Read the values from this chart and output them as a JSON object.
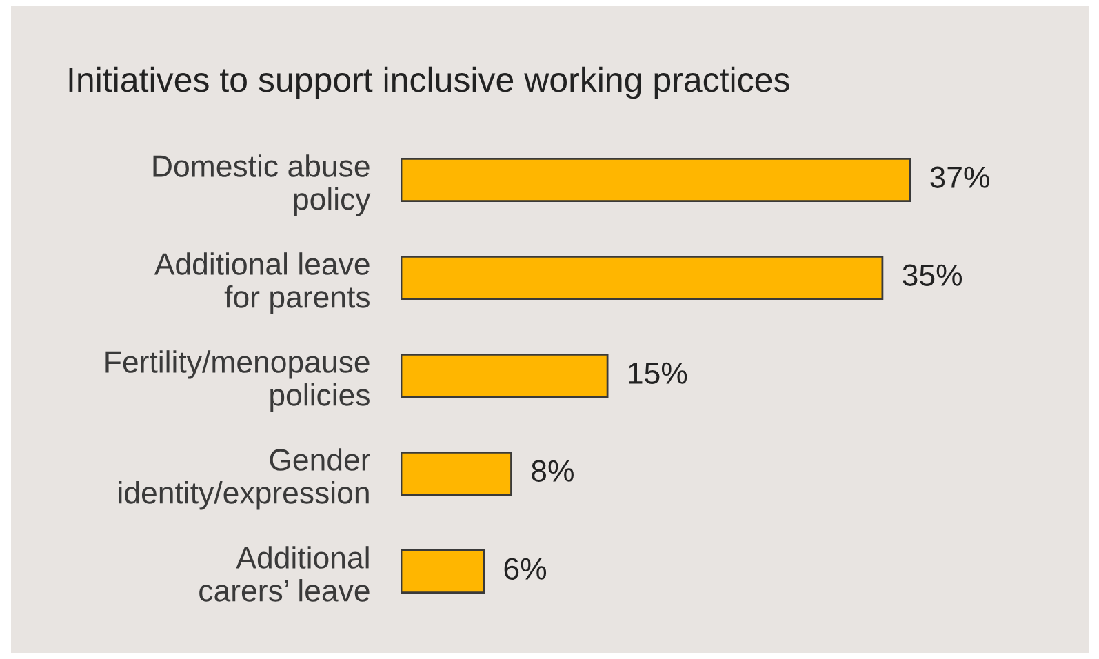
{
  "chart_data": {
    "type": "bar",
    "orientation": "horizontal",
    "title": "Initiatives to support inclusive working practices",
    "categories": [
      "Domestic abuse\npolicy",
      "Additional leave\nfor parents",
      "Fertility/menopause\npolicies",
      "Gender\nidentity/expression",
      "Additional\ncarers’ leave"
    ],
    "values": [
      37,
      35,
      15,
      8,
      6
    ],
    "value_labels": [
      "37%",
      "35%",
      "15%",
      "8%",
      "6%"
    ],
    "color": "#ffb600",
    "grid": false,
    "legend": false
  }
}
